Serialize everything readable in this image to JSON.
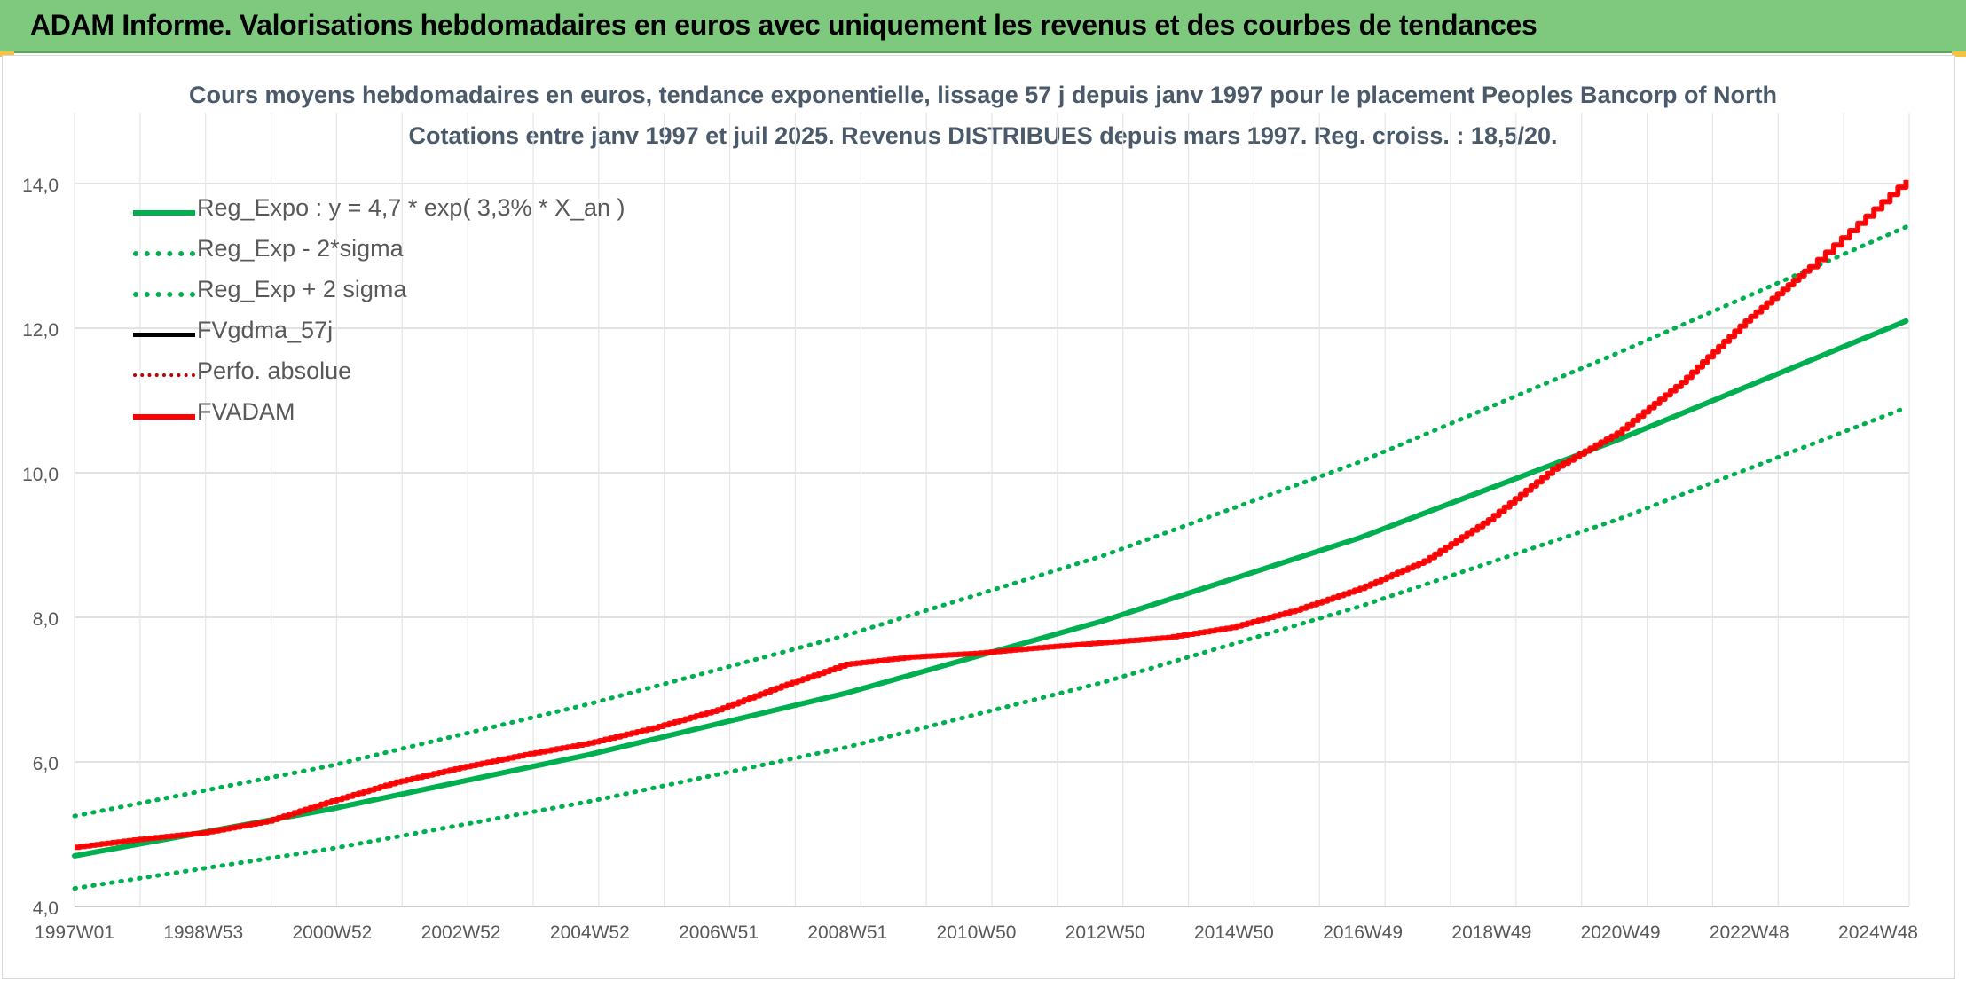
{
  "banner": {
    "title": "ADAM Informe. Valorisations hebdomadaires en euros avec uniquement les revenus et des courbes de tendances"
  },
  "colors": {
    "banner_bg": "#7fc97f",
    "reg_green": "#00b050",
    "fvadam_red": "#ff0000",
    "fvgdma_black": "#000000",
    "title_text": "#4a5a6a"
  },
  "chart_data": {
    "type": "line",
    "title_line1": "Cours moyens hebdomadaires en euros, tendance exponentielle, lissage 57 j depuis janv 1997 pour le placement Peoples Bancorp of North",
    "title_line2": "Cotations entre janv 1997 et juil 2025. Revenus DISTRIBUES depuis mars 1997. Reg. croiss. : 18,5/20.",
    "x_start_year": 1997.0,
    "x_end_year": 2025.55,
    "x_ticks": [
      "1997W01",
      "1998W53",
      "2000W52",
      "2002W52",
      "2004W52",
      "2006W51",
      "2008W51",
      "2010W50",
      "2012W50",
      "2014W50",
      "2016W49",
      "2018W49",
      "2020W49",
      "2022W48",
      "2024W48"
    ],
    "ylim": [
      4.0,
      14.0
    ],
    "y_ticks": [
      "4,0",
      "6,0",
      "8,0",
      "10,0",
      "12,0",
      "14,0"
    ],
    "grid": true,
    "legend_position": "top-left",
    "series": [
      {
        "name": "Reg_Expo : y = 4,7 * exp( 3,3% *  X_an )",
        "color": "#00b050",
        "style": "solid",
        "x": [
          1997,
          2001,
          2005,
          2009,
          2013,
          2017,
          2021,
          2025.5
        ],
        "y": [
          4.7,
          5.35,
          6.1,
          6.95,
          7.95,
          9.1,
          10.45,
          12.1
        ]
      },
      {
        "name": "Reg_Exp - 2*sigma",
        "color": "#00b050",
        "style": "dotted",
        "x": [
          1997,
          2001,
          2005,
          2009,
          2013,
          2017,
          2021,
          2025.5
        ],
        "y": [
          4.25,
          4.8,
          5.45,
          6.2,
          7.1,
          8.15,
          9.35,
          10.9
        ]
      },
      {
        "name": "Reg_Exp + 2 sigma",
        "color": "#00b050",
        "style": "dotted",
        "x": [
          1997,
          2001,
          2005,
          2009,
          2013,
          2017,
          2021,
          2025.5
        ],
        "y": [
          5.25,
          5.95,
          6.8,
          7.75,
          8.85,
          10.15,
          11.65,
          13.4
        ]
      },
      {
        "name": "FVgdma_57j",
        "color": "#000000",
        "style": "solid",
        "x": [
          1997,
          1998,
          1999,
          2000,
          2001,
          2002,
          2003,
          2004,
          2005,
          2006,
          2007,
          2008,
          2009,
          2010,
          2011,
          2012,
          2013,
          2014,
          2015,
          2016,
          2017,
          2018,
          2019,
          2020,
          2021,
          2022,
          2023,
          2024,
          2025.5
        ],
        "y": [
          4.82,
          4.93,
          5.02,
          5.18,
          5.46,
          5.72,
          5.92,
          6.1,
          6.26,
          6.47,
          6.72,
          7.05,
          7.35,
          7.45,
          7.5,
          7.58,
          7.65,
          7.72,
          7.86,
          8.1,
          8.4,
          8.78,
          9.35,
          10.05,
          10.55,
          11.25,
          12.1,
          12.85,
          14.05
        ]
      },
      {
        "name": "Perfo. absolue",
        "color": "#c00000",
        "style": "dotted",
        "x": [
          1997,
          1998,
          1999,
          2000,
          2001,
          2002,
          2003,
          2004,
          2005,
          2006,
          2007,
          2008,
          2009,
          2010,
          2011,
          2012,
          2013,
          2014,
          2015,
          2016,
          2017,
          2018,
          2019,
          2020,
          2021,
          2022,
          2023,
          2024,
          2025.5
        ],
        "y": [
          4.82,
          4.93,
          5.02,
          5.18,
          5.46,
          5.72,
          5.92,
          6.1,
          6.26,
          6.47,
          6.72,
          7.05,
          7.35,
          7.45,
          7.5,
          7.58,
          7.65,
          7.72,
          7.86,
          8.1,
          8.4,
          8.78,
          9.35,
          10.05,
          10.55,
          11.25,
          12.1,
          12.85,
          14.05
        ]
      },
      {
        "name": "FVADAM",
        "color": "#ff0000",
        "style": "solid",
        "x": [
          1997,
          1998,
          1999,
          2000,
          2001,
          2002,
          2003,
          2004,
          2005,
          2006,
          2007,
          2008,
          2009,
          2010,
          2011,
          2012,
          2013,
          2014,
          2015,
          2016,
          2017,
          2018,
          2019,
          2020,
          2021,
          2022,
          2023,
          2024,
          2025.5
        ],
        "y": [
          4.82,
          4.93,
          5.02,
          5.18,
          5.46,
          5.72,
          5.92,
          6.1,
          6.26,
          6.47,
          6.72,
          7.05,
          7.35,
          7.45,
          7.5,
          7.58,
          7.65,
          7.72,
          7.86,
          8.1,
          8.4,
          8.78,
          9.35,
          10.05,
          10.55,
          11.25,
          12.1,
          12.85,
          14.05
        ]
      }
    ]
  }
}
